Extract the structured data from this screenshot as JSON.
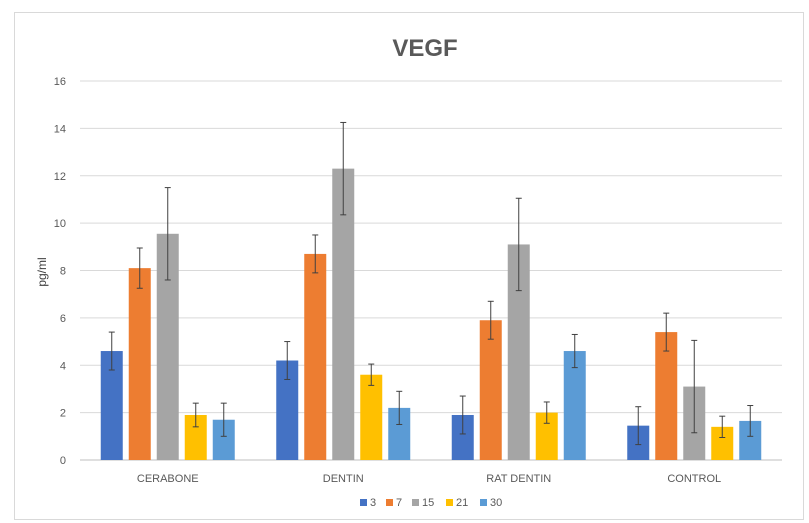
{
  "chart_data": {
    "type": "bar",
    "title": "VEGF",
    "xlabel": "",
    "ylabel": "pg/ml",
    "ylim": [
      0,
      16
    ],
    "yticks": [
      "0",
      "2",
      "4",
      "6",
      "8",
      "10",
      "12",
      "14",
      "16"
    ],
    "grid": true,
    "legend_position": "bottom",
    "categories": [
      "CERABONE",
      "DENTIN",
      "RAT DENTIN",
      "CONTROL"
    ],
    "series": [
      {
        "name": "3",
        "color": "#4472C4",
        "values": [
          4.6,
          4.2,
          1.9,
          1.45
        ],
        "errors": [
          0.8,
          0.8,
          0.8,
          0.8
        ]
      },
      {
        "name": "7",
        "color": "#ED7D31",
        "values": [
          8.1,
          8.7,
          5.9,
          5.4
        ],
        "errors": [
          0.85,
          0.8,
          0.8,
          0.8
        ]
      },
      {
        "name": "15",
        "color": "#A5A5A5",
        "values": [
          9.55,
          12.3,
          9.1,
          3.1
        ],
        "errors": [
          1.95,
          1.95,
          1.95,
          1.95
        ]
      },
      {
        "name": "21",
        "color": "#FFC000",
        "values": [
          1.9,
          3.6,
          2.0,
          1.4
        ],
        "errors": [
          0.5,
          0.45,
          0.45,
          0.45
        ]
      },
      {
        "name": "30",
        "color": "#5B9BD5",
        "values": [
          1.7,
          2.2,
          4.6,
          1.65
        ],
        "errors": [
          0.7,
          0.7,
          0.7,
          0.65
        ]
      }
    ]
  }
}
